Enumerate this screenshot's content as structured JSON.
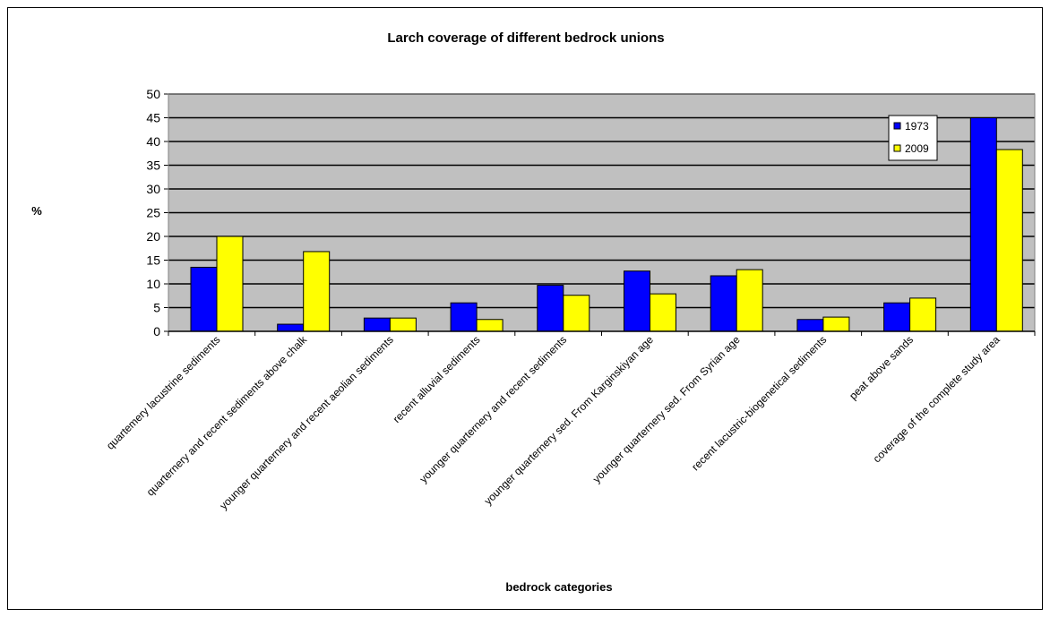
{
  "chart_data": {
    "type": "bar",
    "title": "Larch coverage of different bedrock unions",
    "xlabel": "bedrock categories",
    "ylabel": "%",
    "ylim": [
      0,
      50
    ],
    "yticks": [
      0,
      5,
      10,
      15,
      20,
      25,
      30,
      35,
      40,
      45,
      50
    ],
    "grid": true,
    "legend_position": "top-right",
    "categories": [
      "quartemery lacustrine sediments",
      "quarternery and recent sediments above chalk",
      "younger quarternery and recent aeolian sediments",
      "recent alluvial sediments",
      "younger quarternery and recent sediments",
      "younger quarternery sed. From Karginskiyan age",
      "younger quarternery sed. From Syrian age",
      "recent lacustric-biogenetical sediments",
      "peat above sands",
      "coverage of the complete study area"
    ],
    "series": [
      {
        "name": "1973",
        "color": "#0000FF",
        "values": [
          13.5,
          1.5,
          2.8,
          6.0,
          9.7,
          12.7,
          11.7,
          2.5,
          6.0,
          45.0
        ]
      },
      {
        "name": "2009",
        "color": "#FFFF00",
        "values": [
          20.0,
          16.8,
          2.8,
          2.5,
          7.6,
          7.9,
          13.0,
          3.0,
          7.0,
          38.3
        ]
      }
    ],
    "plot_background": "#C0C0C0"
  }
}
